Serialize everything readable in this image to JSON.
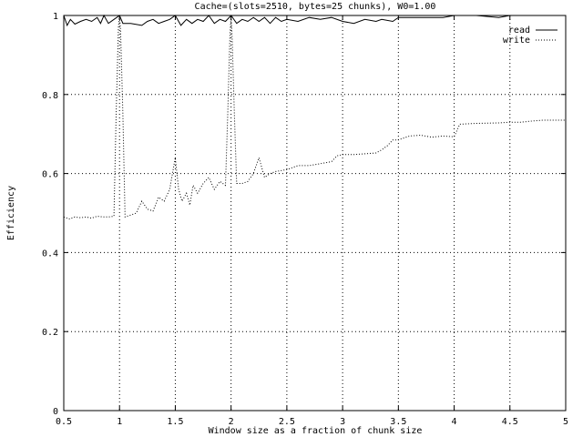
{
  "chart_data": {
    "type": "line",
    "title": "Cache=(slots=2510, bytes=25 chunks), W0=1.00",
    "xlabel": "Window size as a fraction of chunk size",
    "ylabel": "Efficiency",
    "xlim": [
      0.5,
      5
    ],
    "ylim": [
      0,
      1
    ],
    "xticks": [
      0.5,
      1,
      1.5,
      2,
      2.5,
      3,
      3.5,
      4,
      4.5,
      5
    ],
    "xtick_labels": [
      "0.5",
      "1",
      "1.5",
      "2",
      "2.5",
      "3",
      "3.5",
      "4",
      "4.5",
      "5"
    ],
    "yticks": [
      0,
      0.2,
      0.4,
      0.6,
      0.8,
      1
    ],
    "ytick_labels": [
      "0",
      "0.2",
      "0.4",
      "0.6",
      "0.8",
      "1"
    ],
    "grid": true,
    "legend": "top-right",
    "series": [
      {
        "name": "read",
        "style": "solid",
        "points": [
          [
            0.5,
            1.0
          ],
          [
            0.53,
            0.975
          ],
          [
            0.56,
            0.99
          ],
          [
            0.6,
            0.978
          ],
          [
            0.65,
            0.985
          ],
          [
            0.7,
            0.99
          ],
          [
            0.75,
            0.985
          ],
          [
            0.8,
            0.995
          ],
          [
            0.83,
            0.98
          ],
          [
            0.86,
            1.0
          ],
          [
            0.9,
            0.98
          ],
          [
            0.95,
            0.99
          ],
          [
            1.0,
            1.0
          ],
          [
            1.03,
            0.98
          ],
          [
            1.1,
            0.98
          ],
          [
            1.2,
            0.975
          ],
          [
            1.25,
            0.985
          ],
          [
            1.3,
            0.99
          ],
          [
            1.35,
            0.98
          ],
          [
            1.4,
            0.985
          ],
          [
            1.45,
            0.99
          ],
          [
            1.5,
            1.0
          ],
          [
            1.55,
            0.975
          ],
          [
            1.6,
            0.99
          ],
          [
            1.65,
            0.98
          ],
          [
            1.7,
            0.99
          ],
          [
            1.75,
            0.985
          ],
          [
            1.8,
            1.0
          ],
          [
            1.85,
            0.98
          ],
          [
            1.9,
            0.99
          ],
          [
            1.95,
            0.985
          ],
          [
            2.0,
            1.0
          ],
          [
            2.05,
            0.98
          ],
          [
            2.1,
            0.99
          ],
          [
            2.15,
            0.985
          ],
          [
            2.2,
            0.995
          ],
          [
            2.25,
            0.985
          ],
          [
            2.3,
            0.995
          ],
          [
            2.35,
            0.98
          ],
          [
            2.4,
            0.995
          ],
          [
            2.45,
            0.985
          ],
          [
            2.5,
            0.99
          ],
          [
            2.6,
            0.985
          ],
          [
            2.7,
            0.995
          ],
          [
            2.8,
            0.99
          ],
          [
            2.9,
            0.995
          ],
          [
            3.0,
            0.985
          ],
          [
            3.1,
            0.98
          ],
          [
            3.2,
            0.99
          ],
          [
            3.3,
            0.985
          ],
          [
            3.35,
            0.99
          ],
          [
            3.45,
            0.985
          ],
          [
            3.5,
            0.995
          ],
          [
            3.6,
            0.995
          ],
          [
            3.75,
            0.995
          ],
          [
            3.9,
            0.995
          ],
          [
            4.0,
            1.0
          ],
          [
            4.2,
            1.0
          ],
          [
            4.4,
            0.995
          ],
          [
            4.5,
            1.0
          ],
          [
            4.7,
            1.0
          ],
          [
            5.0,
            1.0
          ]
        ]
      },
      {
        "name": "write",
        "style": "dotted",
        "points": [
          [
            0.5,
            0.49
          ],
          [
            0.55,
            0.485
          ],
          [
            0.6,
            0.49
          ],
          [
            0.65,
            0.488
          ],
          [
            0.7,
            0.49
          ],
          [
            0.75,
            0.487
          ],
          [
            0.8,
            0.492
          ],
          [
            0.85,
            0.49
          ],
          [
            0.9,
            0.49
          ],
          [
            0.95,
            0.492
          ],
          [
            0.97,
            0.75
          ],
          [
            0.99,
            0.97
          ],
          [
            1.0,
            1.0
          ],
          [
            1.01,
            0.96
          ],
          [
            1.03,
            0.75
          ],
          [
            1.05,
            0.49
          ],
          [
            1.1,
            0.495
          ],
          [
            1.15,
            0.5
          ],
          [
            1.2,
            0.53
          ],
          [
            1.25,
            0.51
          ],
          [
            1.3,
            0.505
          ],
          [
            1.35,
            0.54
          ],
          [
            1.4,
            0.53
          ],
          [
            1.45,
            0.56
          ],
          [
            1.5,
            0.64
          ],
          [
            1.53,
            0.56
          ],
          [
            1.56,
            0.53
          ],
          [
            1.6,
            0.55
          ],
          [
            1.63,
            0.52
          ],
          [
            1.66,
            0.57
          ],
          [
            1.7,
            0.55
          ],
          [
            1.75,
            0.575
          ],
          [
            1.8,
            0.59
          ],
          [
            1.85,
            0.56
          ],
          [
            1.9,
            0.58
          ],
          [
            1.95,
            0.57
          ],
          [
            1.97,
            0.75
          ],
          [
            1.99,
            0.95
          ],
          [
            2.0,
            1.0
          ],
          [
            2.01,
            0.94
          ],
          [
            2.03,
            0.75
          ],
          [
            2.05,
            0.575
          ],
          [
            2.1,
            0.575
          ],
          [
            2.15,
            0.58
          ],
          [
            2.2,
            0.6
          ],
          [
            2.25,
            0.64
          ],
          [
            2.3,
            0.59
          ],
          [
            2.35,
            0.6
          ],
          [
            2.4,
            0.605
          ],
          [
            2.5,
            0.61
          ],
          [
            2.6,
            0.62
          ],
          [
            2.7,
            0.62
          ],
          [
            2.8,
            0.625
          ],
          [
            2.9,
            0.63
          ],
          [
            2.95,
            0.645
          ],
          [
            3.0,
            0.648
          ],
          [
            3.1,
            0.648
          ],
          [
            3.2,
            0.65
          ],
          [
            3.3,
            0.652
          ],
          [
            3.35,
            0.66
          ],
          [
            3.4,
            0.67
          ],
          [
            3.45,
            0.685
          ],
          [
            3.5,
            0.685
          ],
          [
            3.6,
            0.695
          ],
          [
            3.7,
            0.697
          ],
          [
            3.8,
            0.692
          ],
          [
            3.9,
            0.695
          ],
          [
            4.0,
            0.693
          ],
          [
            4.05,
            0.725
          ],
          [
            4.2,
            0.727
          ],
          [
            4.4,
            0.728
          ],
          [
            4.5,
            0.73
          ],
          [
            4.6,
            0.73
          ],
          [
            4.7,
            0.733
          ],
          [
            4.8,
            0.735
          ],
          [
            5.0,
            0.735
          ]
        ]
      }
    ]
  }
}
